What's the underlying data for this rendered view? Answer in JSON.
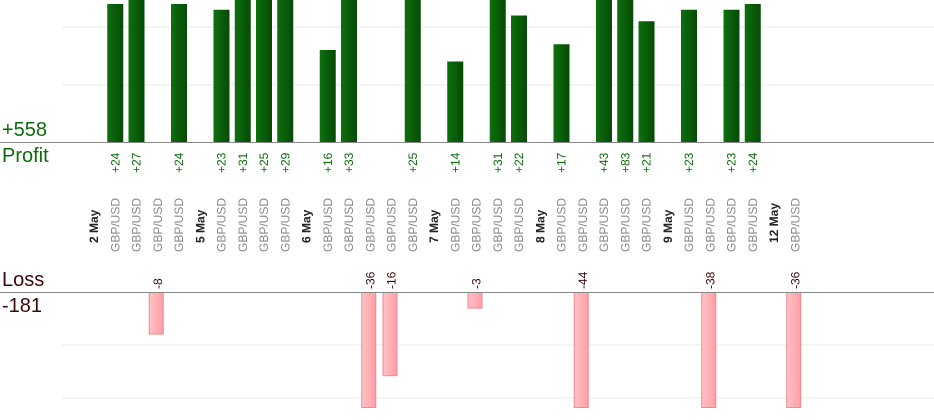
{
  "summary": {
    "profit_total": "+558",
    "profit_label": "Profit",
    "loss_label": "Loss",
    "loss_total": "-181"
  },
  "colors": {
    "profit_bar": "#0b640b",
    "profit_text": "#0b6b0b",
    "loss_bar": "#ffb3b8",
    "loss_text": "#3a0a0a",
    "pair_text": "#888888",
    "date_text": "#222222",
    "grid": "#e8e8e8",
    "axis": "#888888"
  },
  "chart_data": {
    "type": "bar",
    "categories": [
      {
        "date": "2 May"
      },
      {
        "pair": "GBP/USD",
        "profit": 24
      },
      {
        "pair": "GBP/USD",
        "profit": 27
      },
      {
        "pair": "GBP/USD",
        "loss": -8
      },
      {
        "pair": "GBP/USD",
        "profit": 24
      },
      {
        "date": "5 May"
      },
      {
        "pair": "GBP/USD",
        "profit": 23
      },
      {
        "pair": "GBP/USD",
        "profit": 31
      },
      {
        "pair": "GBP/USD",
        "profit": 25
      },
      {
        "pair": "GBP/USD",
        "profit": 29
      },
      {
        "date": "6 May"
      },
      {
        "pair": "GBP/USD",
        "profit": 16
      },
      {
        "pair": "GBP/USD",
        "profit": 33
      },
      {
        "pair": "GBP/USD",
        "loss": -36
      },
      {
        "pair": "GBP/USD",
        "loss": -16
      },
      {
        "pair": "GBP/USD",
        "profit": 25
      },
      {
        "date": "7 May"
      },
      {
        "pair": "GBP/USD",
        "profit": 14
      },
      {
        "pair": "GBP/USD",
        "loss": -3
      },
      {
        "pair": "GBP/USD",
        "profit": 31
      },
      {
        "pair": "GBP/USD",
        "profit": 22
      },
      {
        "date": "8 May"
      },
      {
        "pair": "GBP/USD",
        "profit": 17
      },
      {
        "pair": "GBP/USD",
        "loss": -44
      },
      {
        "pair": "GBP/USD",
        "profit": 43
      },
      {
        "pair": "GBP/USD",
        "profit": 83
      },
      {
        "pair": "GBP/USD",
        "profit": 21
      },
      {
        "date": "9 May"
      },
      {
        "pair": "GBP/USD",
        "profit": 23
      },
      {
        "pair": "GBP/USD",
        "loss": -38
      },
      {
        "pair": "GBP/USD",
        "profit": 23
      },
      {
        "pair": "GBP/USD",
        "profit": 24
      },
      {
        "date": "12 May"
      },
      {
        "pair": "GBP/USD",
        "loss": -36
      }
    ],
    "profit_axis_max": 25,
    "loss_axis_min": -20,
    "grid": true
  }
}
